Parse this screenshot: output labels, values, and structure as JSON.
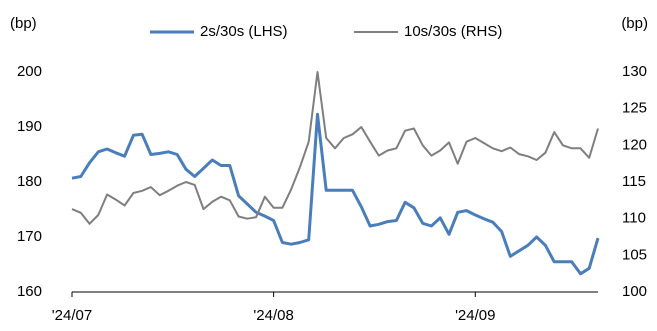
{
  "chart_data": {
    "type": "line",
    "ylabel": "(bp)",
    "y2label": "(bp)",
    "categories": [
      "'24/07",
      null,
      null,
      null,
      null,
      null,
      null,
      null,
      null,
      null,
      null,
      null,
      null,
      null,
      null,
      null,
      null,
      null,
      null,
      null,
      null,
      null,
      null,
      "'24/08",
      null,
      null,
      null,
      null,
      null,
      null,
      null,
      null,
      null,
      null,
      null,
      null,
      null,
      null,
      null,
      null,
      null,
      null,
      null,
      null,
      null,
      null,
      "'24/09",
      null,
      null,
      null,
      null,
      null,
      null,
      null,
      null,
      null,
      null,
      null,
      null,
      null,
      null
    ],
    "series": [
      {
        "name": "2s/30s (LHS)",
        "color": "#4a7ebb",
        "axis": "y",
        "values": [
          180.7,
          181.0,
          183.5,
          185.5,
          186.0,
          185.3,
          184.7,
          188.5,
          188.7,
          185.0,
          185.2,
          185.5,
          185.0,
          182.3,
          181.0,
          182.5,
          184.0,
          183.0,
          183.0,
          177.5,
          176.0,
          174.5,
          173.8,
          173.0,
          169.0,
          168.7,
          169.0,
          169.5,
          192.3,
          178.5,
          178.5,
          178.5,
          178.5,
          175.5,
          172.0,
          172.3,
          172.8,
          173.0,
          176.3,
          175.3,
          172.5,
          172.0,
          173.5,
          170.5,
          174.5,
          174.8,
          174.0,
          173.3,
          172.7,
          171.0,
          166.5,
          167.5,
          168.5,
          170.0,
          168.5,
          165.5,
          165.5,
          165.5,
          163.3,
          164.3,
          169.8
        ]
      },
      {
        "name": "10s/30s (RHS)",
        "color": "#7f7f7f",
        "axis": "y2",
        "values": [
          111.3,
          110.8,
          109.3,
          110.5,
          113.3,
          112.6,
          111.8,
          113.5,
          113.8,
          114.3,
          113.2,
          113.8,
          114.5,
          115.0,
          114.6,
          111.3,
          112.3,
          113.0,
          112.5,
          110.3,
          110.0,
          110.2,
          113.0,
          111.5,
          111.5,
          114.0,
          117.0,
          120.5,
          130.0,
          121.0,
          119.6,
          121.0,
          121.5,
          122.5,
          120.5,
          118.6,
          119.3,
          119.6,
          122.0,
          122.3,
          120.0,
          118.6,
          119.3,
          120.4,
          117.5,
          120.5,
          121.0,
          120.3,
          119.6,
          119.2,
          119.7,
          118.8,
          118.5,
          118.0,
          119.0,
          121.8,
          120.0,
          119.6,
          119.6,
          118.3,
          122.3
        ]
      }
    ],
    "ylim": [
      160,
      200
    ],
    "yticks": [
      160,
      170,
      180,
      190,
      200
    ],
    "y2lim": [
      100,
      130
    ],
    "y2ticks": [
      100,
      105,
      110,
      115,
      120,
      125,
      130
    ],
    "grid": false,
    "legend": "top"
  }
}
